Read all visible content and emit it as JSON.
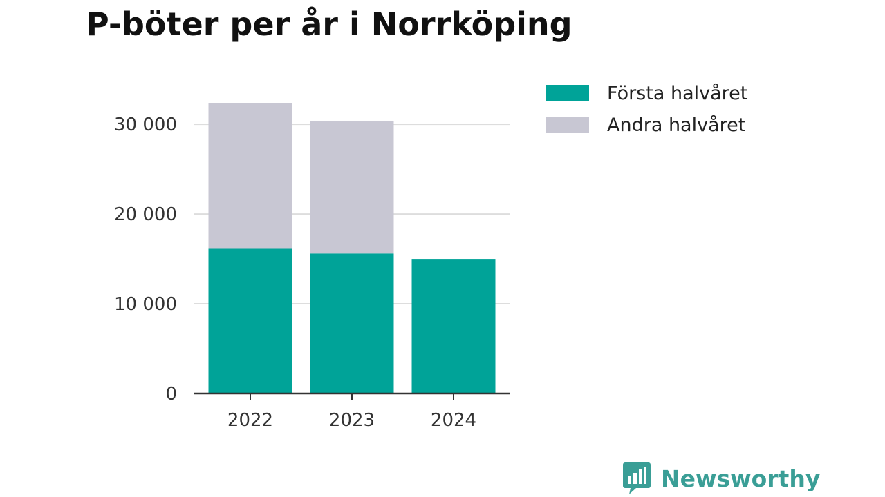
{
  "title": "P-böter per år i Norrköping",
  "brand": {
    "name": "Newsworthy",
    "icon": "bar-chart-bubble-icon",
    "color": "#3a9e96"
  },
  "legend": {
    "placement": "right",
    "items": [
      {
        "label": "Första halvåret",
        "color": "#00a398"
      },
      {
        "label": "Andra halvåret",
        "color": "#c8c7d3"
      }
    ]
  },
  "chart_data": {
    "type": "bar",
    "stacked": true,
    "categories": [
      "2022",
      "2023",
      "2024"
    ],
    "series": [
      {
        "name": "Första halvåret",
        "color": "#00a398",
        "values": [
          16200,
          15600,
          15000
        ]
      },
      {
        "name": "Andra halvåret",
        "color": "#c8c7d3",
        "values": [
          16200,
          14800,
          0
        ]
      }
    ],
    "yticks": [
      0,
      10000,
      20000,
      30000
    ],
    "ytick_labels": [
      "0",
      "10 000",
      "20 000",
      "30 000"
    ],
    "ylim": [
      0,
      32400
    ],
    "grid": true,
    "xlabel": "",
    "ylabel": ""
  }
}
